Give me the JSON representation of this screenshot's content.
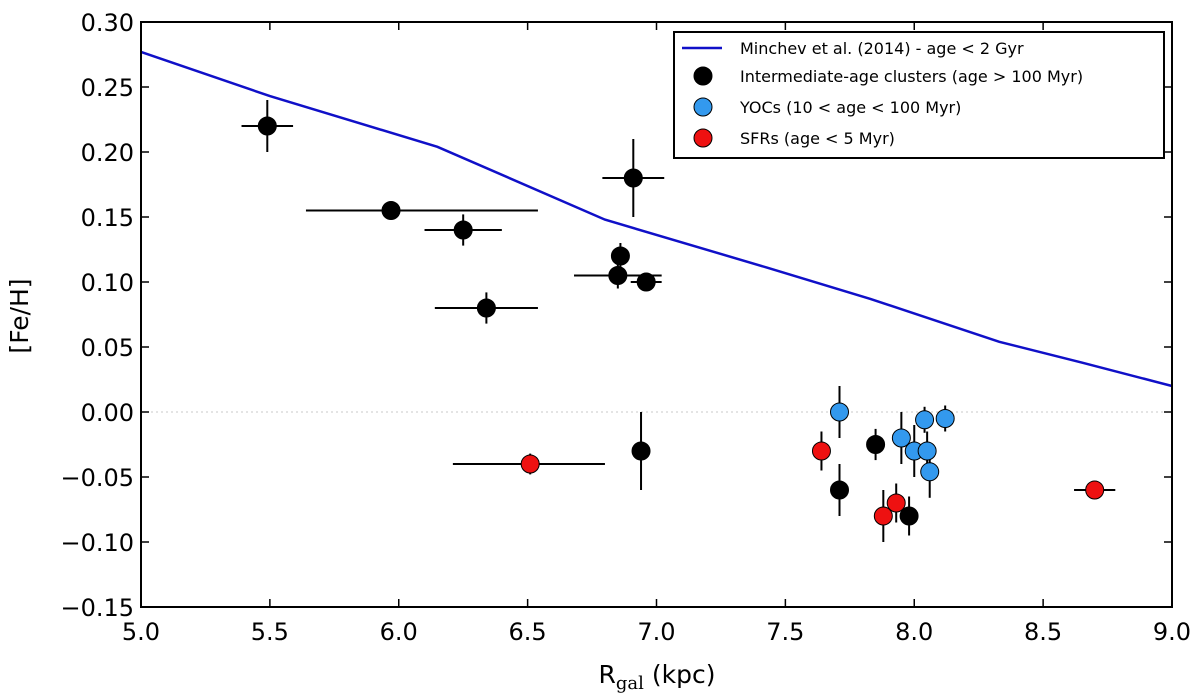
{
  "chart_data": {
    "type": "scatter",
    "xlabel_main": "R",
    "xlabel_sub": "gal",
    "xlabel_unit": " (kpc)",
    "ylabel": "[Fe/H]",
    "xlim": [
      5.0,
      9.0
    ],
    "ylim": [
      -0.15,
      0.3
    ],
    "x_ticks": [
      5.0,
      5.5,
      6.0,
      6.5,
      7.0,
      7.5,
      8.0,
      8.5,
      9.0
    ],
    "x_tick_labels": [
      "5.0",
      "5.5",
      "6.0",
      "6.5",
      "7.0",
      "7.5",
      "8.0",
      "8.5",
      "9.0"
    ],
    "y_ticks": [
      0.3,
      0.25,
      0.2,
      0.15,
      0.1,
      0.05,
      0.0,
      -0.05,
      -0.1,
      -0.15
    ],
    "y_tick_labels": [
      "0.30",
      "0.25",
      "0.20",
      "0.15",
      "0.10",
      "0.05",
      "0.00",
      "−0.05",
      "−0.10",
      "−0.15"
    ],
    "zero_line": 0.0,
    "legend_position": "top-right",
    "colors": {
      "model_line": "#1010c8",
      "intermediate": "#000000",
      "yoc": "#3399ee",
      "sfr": "#ee1111",
      "zero_line": "#c8c8c8"
    },
    "model_line": {
      "name": "Minchev et al. (2014) - age < 2 Gyr",
      "x": [
        5.0,
        5.5,
        6.15,
        6.8,
        7.43,
        7.83,
        8.33,
        8.65,
        9.0
      ],
      "y": [
        0.277,
        0.243,
        0.204,
        0.148,
        0.111,
        0.087,
        0.054,
        0.038,
        0.02
      ]
    },
    "series": [
      {
        "key": "intermediate",
        "name": "Intermediate-age clusters (age > 100 Myr)",
        "points": [
          {
            "x": 5.49,
            "y": 0.22,
            "xerr": 0.1,
            "yerr": 0.02
          },
          {
            "x": 5.97,
            "y": 0.155,
            "xerr_lo": 0.33,
            "xerr_hi": 0.57,
            "yerr": 0.0
          },
          {
            "x": 6.25,
            "y": 0.14,
            "xerr": 0.15,
            "yerr": 0.012
          },
          {
            "x": 6.34,
            "y": 0.08,
            "xerr": 0.2,
            "yerr": 0.012
          },
          {
            "x": 6.86,
            "y": 0.12,
            "xerr": 0.0,
            "yerr": 0.01
          },
          {
            "x": 6.85,
            "y": 0.105,
            "xerr": 0.17,
            "yerr": 0.01
          },
          {
            "x": 6.96,
            "y": 0.1,
            "xerr": 0.06,
            "yerr": 0.0
          },
          {
            "x": 6.91,
            "y": 0.18,
            "xerr": 0.12,
            "yerr": 0.03
          },
          {
            "x": 6.94,
            "y": -0.03,
            "xerr": 0.0,
            "yerr": 0.03
          },
          {
            "x": 7.71,
            "y": -0.06,
            "xerr": 0.0,
            "yerr": 0.02
          },
          {
            "x": 7.85,
            "y": -0.025,
            "xerr": 0.0,
            "yerr": 0.012
          },
          {
            "x": 7.98,
            "y": -0.08,
            "xerr": 0.0,
            "yerr": 0.015
          }
        ]
      },
      {
        "key": "yoc",
        "name": "YOCs (10 < age < 100 Myr)",
        "points": [
          {
            "x": 7.71,
            "y": 0.0,
            "xerr": 0.0,
            "yerr": 0.02
          },
          {
            "x": 7.95,
            "y": -0.02,
            "xerr": 0.0,
            "yerr": 0.02
          },
          {
            "x": 8.0,
            "y": -0.03,
            "xerr": 0.0,
            "yerr": 0.02
          },
          {
            "x": 8.04,
            "y": -0.006,
            "xerr": 0.0,
            "yerr": 0.01
          },
          {
            "x": 8.05,
            "y": -0.03,
            "xerr": 0.0,
            "yerr": 0.015
          },
          {
            "x": 8.06,
            "y": -0.046,
            "xerr": 0.0,
            "yerr": 0.02
          },
          {
            "x": 8.12,
            "y": -0.005,
            "xerr": 0.0,
            "yerr": 0.01
          }
        ]
      },
      {
        "key": "sfr",
        "name": "SFRs (age < 5 Myr)",
        "points": [
          {
            "x": 6.51,
            "y": -0.04,
            "xerr_lo": 0.3,
            "xerr_hi": 0.29,
            "yerr": 0.008
          },
          {
            "x": 7.64,
            "y": -0.03,
            "xerr": 0.0,
            "yerr": 0.015
          },
          {
            "x": 7.88,
            "y": -0.08,
            "xerr": 0.0,
            "yerr": 0.02
          },
          {
            "x": 7.93,
            "y": -0.07,
            "xerr": 0.0,
            "yerr": 0.015
          },
          {
            "x": 8.7,
            "y": -0.06,
            "xerr": 0.08,
            "yerr": 0.0
          }
        ]
      }
    ]
  }
}
